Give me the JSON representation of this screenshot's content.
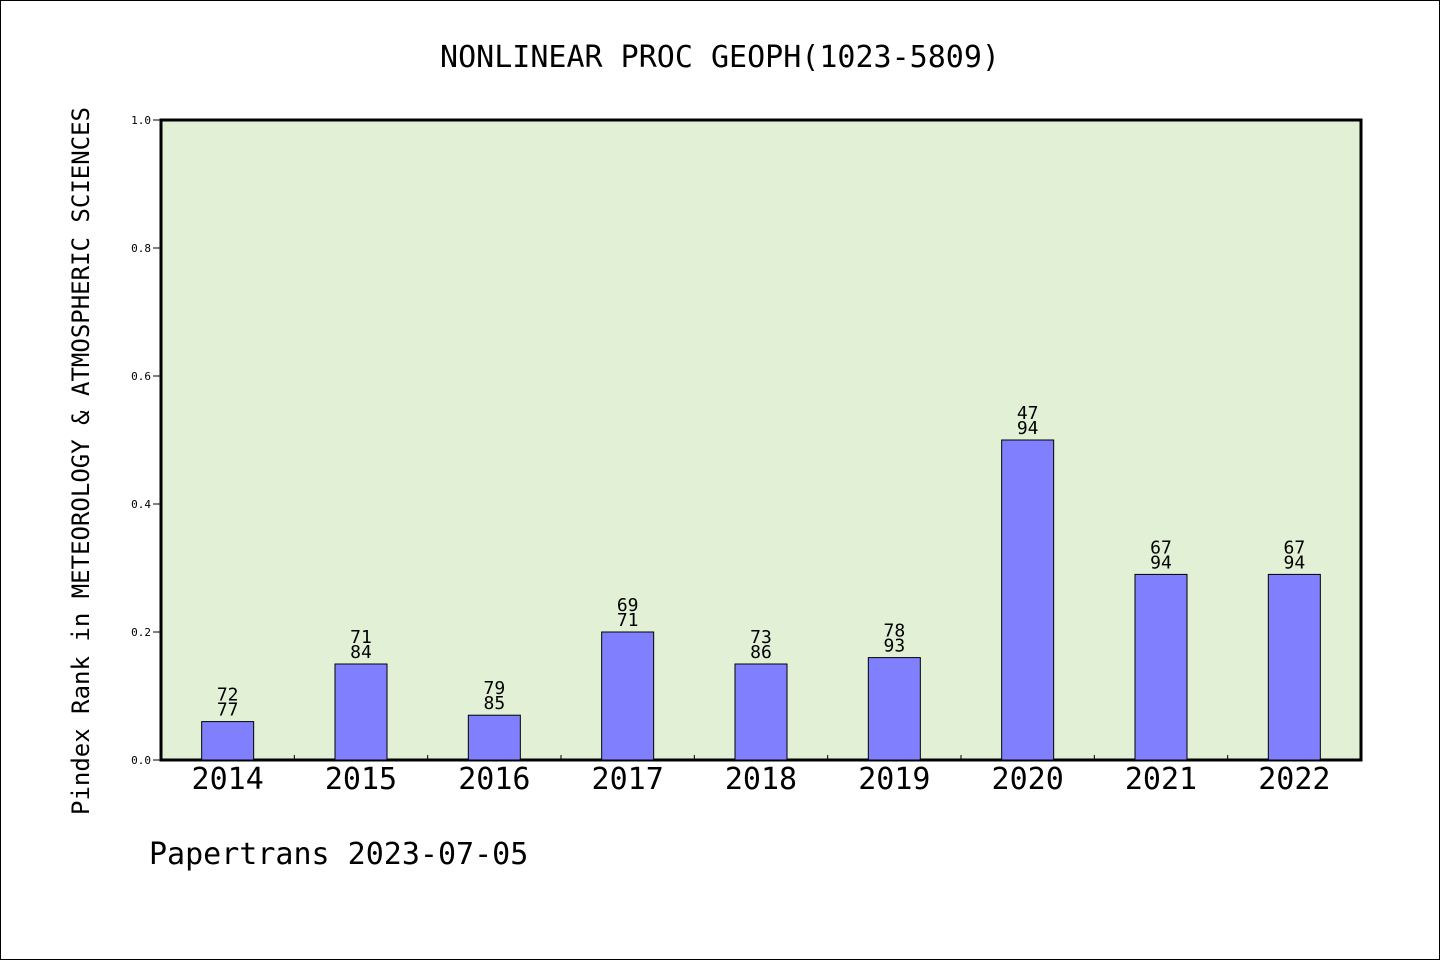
{
  "chart_data": {
    "type": "bar",
    "title": "NONLINEAR PROC GEOPH(1023-5809)",
    "xlabel": "",
    "ylabel": "Pindex Rank in METEOROLOGY & ATMOSPHERIC SCIENCES",
    "categories": [
      "2014",
      "2015",
      "2016",
      "2017",
      "2018",
      "2019",
      "2020",
      "2021",
      "2022"
    ],
    "values": [
      0.06,
      0.15,
      0.07,
      0.2,
      0.15,
      0.16,
      0.5,
      0.29,
      0.29
    ],
    "bar_labels_top": [
      "72",
      "71",
      "79",
      "69",
      "73",
      "78",
      "47",
      "67",
      "67"
    ],
    "bar_labels_bottom": [
      "77",
      "84",
      "85",
      "71",
      "86",
      "93",
      "94",
      "94",
      "94"
    ],
    "ylim": [
      0,
      1.0
    ],
    "yticks": [
      "0.0",
      "0.2",
      "0.4",
      "0.6",
      "0.8",
      "1.0"
    ],
    "grid": false,
    "colors": {
      "bar": "#8080ff",
      "plot_background": "#e2f0d6",
      "axis": "#000000"
    }
  },
  "footer": {
    "text": "Papertrans 2023-07-05"
  }
}
